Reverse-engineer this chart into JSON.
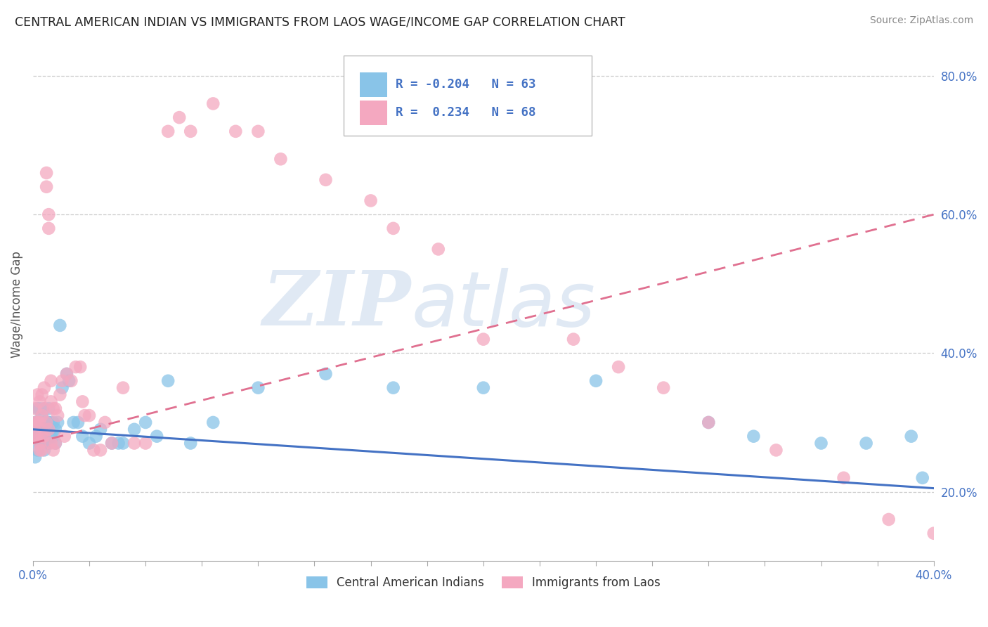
{
  "title": "CENTRAL AMERICAN INDIAN VS IMMIGRANTS FROM LAOS WAGE/INCOME GAP CORRELATION CHART",
  "source": "Source: ZipAtlas.com",
  "ylabel": "Wage/Income Gap",
  "series": [
    {
      "name": "Central American Indians",
      "color": "#89c4e8",
      "trend_color": "#4472c4",
      "R": -0.204,
      "N": 63
    },
    {
      "name": "Immigrants from Laos",
      "color": "#f4a8c0",
      "trend_color": "#e07090",
      "R": 0.234,
      "N": 68
    }
  ],
  "blue_points_x": [
    0.001,
    0.001,
    0.001,
    0.002,
    0.002,
    0.002,
    0.002,
    0.003,
    0.003,
    0.003,
    0.003,
    0.003,
    0.004,
    0.004,
    0.004,
    0.004,
    0.005,
    0.005,
    0.005,
    0.005,
    0.006,
    0.006,
    0.006,
    0.007,
    0.007,
    0.007,
    0.008,
    0.008,
    0.009,
    0.009,
    0.01,
    0.01,
    0.011,
    0.012,
    0.013,
    0.015,
    0.016,
    0.018,
    0.02,
    0.022,
    0.025,
    0.028,
    0.03,
    0.035,
    0.038,
    0.04,
    0.045,
    0.05,
    0.055,
    0.06,
    0.07,
    0.08,
    0.1,
    0.13,
    0.16,
    0.2,
    0.25,
    0.3,
    0.32,
    0.35,
    0.37,
    0.39,
    0.395
  ],
  "blue_points_y": [
    0.28,
    0.3,
    0.25,
    0.28,
    0.3,
    0.32,
    0.26,
    0.28,
    0.3,
    0.27,
    0.29,
    0.32,
    0.28,
    0.31,
    0.29,
    0.27,
    0.3,
    0.28,
    0.32,
    0.26,
    0.3,
    0.27,
    0.29,
    0.3,
    0.27,
    0.32,
    0.28,
    0.3,
    0.28,
    0.3,
    0.29,
    0.27,
    0.3,
    0.44,
    0.35,
    0.37,
    0.36,
    0.3,
    0.3,
    0.28,
    0.27,
    0.28,
    0.29,
    0.27,
    0.27,
    0.27,
    0.29,
    0.3,
    0.28,
    0.36,
    0.27,
    0.3,
    0.35,
    0.37,
    0.35,
    0.35,
    0.36,
    0.3,
    0.28,
    0.27,
    0.27,
    0.28,
    0.22
  ],
  "pink_points_x": [
    0.001,
    0.001,
    0.001,
    0.002,
    0.002,
    0.002,
    0.003,
    0.003,
    0.003,
    0.003,
    0.004,
    0.004,
    0.004,
    0.004,
    0.005,
    0.005,
    0.005,
    0.006,
    0.006,
    0.006,
    0.007,
    0.007,
    0.007,
    0.008,
    0.008,
    0.008,
    0.009,
    0.009,
    0.01,
    0.01,
    0.011,
    0.012,
    0.013,
    0.014,
    0.015,
    0.017,
    0.019,
    0.021,
    0.022,
    0.023,
    0.025,
    0.027,
    0.03,
    0.032,
    0.035,
    0.04,
    0.045,
    0.05,
    0.06,
    0.065,
    0.07,
    0.08,
    0.09,
    0.1,
    0.11,
    0.13,
    0.15,
    0.16,
    0.18,
    0.2,
    0.24,
    0.26,
    0.28,
    0.3,
    0.33,
    0.36,
    0.38,
    0.4
  ],
  "pink_points_y": [
    0.32,
    0.3,
    0.28,
    0.34,
    0.3,
    0.28,
    0.33,
    0.3,
    0.27,
    0.26,
    0.34,
    0.31,
    0.28,
    0.26,
    0.35,
    0.32,
    0.28,
    0.66,
    0.64,
    0.3,
    0.6,
    0.58,
    0.29,
    0.36,
    0.33,
    0.27,
    0.32,
    0.26,
    0.32,
    0.27,
    0.31,
    0.34,
    0.36,
    0.28,
    0.37,
    0.36,
    0.38,
    0.38,
    0.33,
    0.31,
    0.31,
    0.26,
    0.26,
    0.3,
    0.27,
    0.35,
    0.27,
    0.27,
    0.72,
    0.74,
    0.72,
    0.76,
    0.72,
    0.72,
    0.68,
    0.65,
    0.62,
    0.58,
    0.55,
    0.42,
    0.42,
    0.38,
    0.35,
    0.3,
    0.26,
    0.22,
    0.16,
    0.14
  ],
  "xlim": [
    0.0,
    0.4
  ],
  "ylim": [
    0.1,
    0.84
  ],
  "y_ticks": [
    0.2,
    0.4,
    0.6,
    0.8
  ],
  "y_tick_labels": [
    "20.0%",
    "40.0%",
    "60.0%",
    "80.0%"
  ],
  "background_color": "#ffffff",
  "grid_color": "#cccccc",
  "watermark_zip": "ZIP",
  "watermark_atlas": "atlas",
  "watermark_color_zip": "#c8d8ec",
  "watermark_color_atlas": "#c8d8ec",
  "title_color": "#222222",
  "axis_label_color": "#4472c4",
  "legend_R_N_color": "#4472c4"
}
